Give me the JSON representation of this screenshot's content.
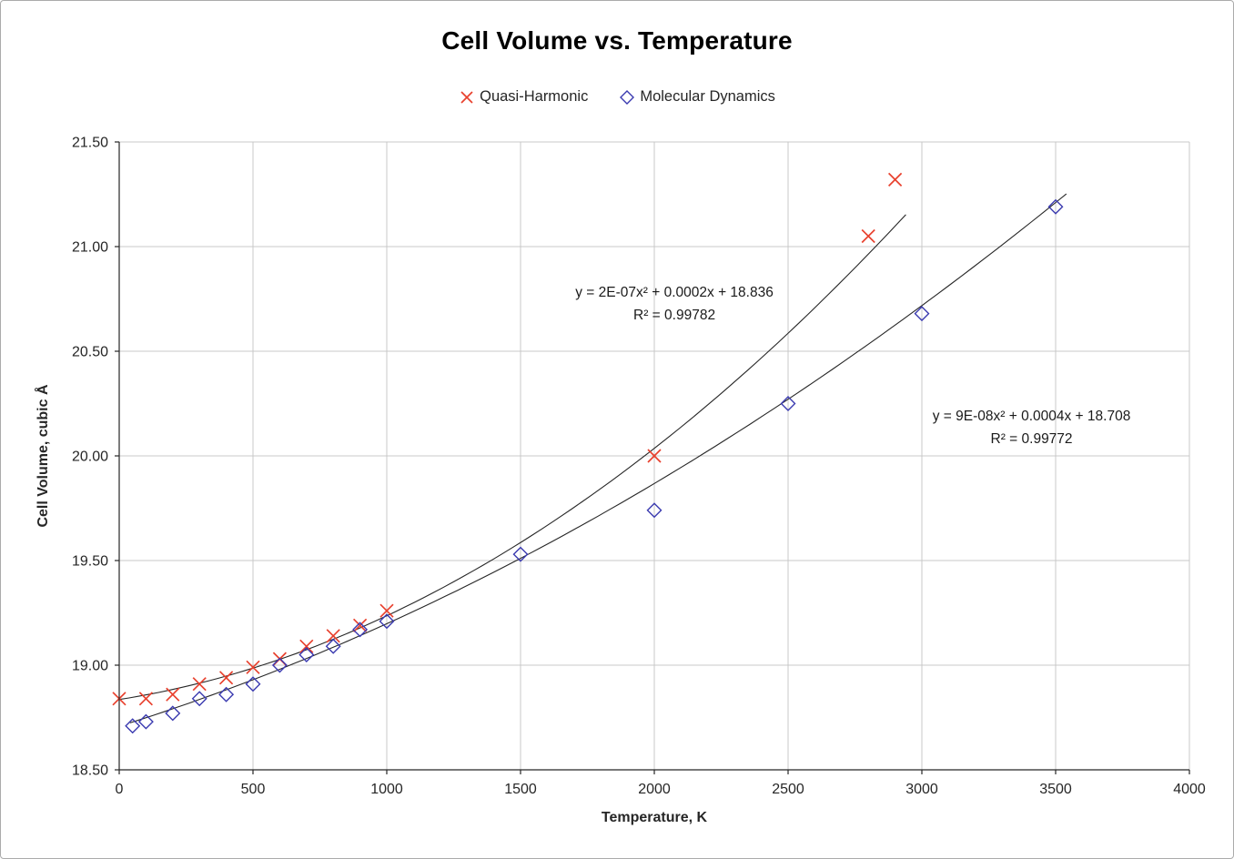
{
  "window": {
    "background": "#ffffff",
    "border_color": "#ababab"
  },
  "chart_data": {
    "type": "scatter",
    "title": "Cell Volume vs. Temperature",
    "xlabel": "Temperature, K",
    "ylabel": "Cell Volume, cubic Å",
    "xlim": [
      0,
      4000
    ],
    "ylim": [
      18.5,
      21.5
    ],
    "xticks": [
      0,
      500,
      1000,
      1500,
      2000,
      2500,
      3000,
      3500,
      4000
    ],
    "yticks": [
      "18.50",
      "19.00",
      "19.50",
      "20.00",
      "20.50",
      "21.00",
      "21.50"
    ],
    "grid": true,
    "grid_color": "#c9c9c9",
    "axis_color": "#262626",
    "tick_label_color": "#262626",
    "legend_position": "top",
    "series": [
      {
        "name": "Quasi-Harmonic",
        "marker": "x",
        "color": "#e8402d",
        "points": [
          [
            0,
            18.84
          ],
          [
            100,
            18.84
          ],
          [
            200,
            18.86
          ],
          [
            300,
            18.91
          ],
          [
            400,
            18.94
          ],
          [
            500,
            18.99
          ],
          [
            600,
            19.03
          ],
          [
            700,
            19.09
          ],
          [
            800,
            19.14
          ],
          [
            900,
            19.19
          ],
          [
            1000,
            19.26
          ],
          [
            2000,
            20.0
          ],
          [
            2800,
            21.05
          ],
          [
            2900,
            21.32
          ]
        ],
        "trendline": {
          "type": "polynomial",
          "coeffs": [
            18.836,
            0.0002,
            2e-07
          ],
          "x_range": [
            0,
            2940
          ],
          "color": "#262626"
        },
        "annotation": {
          "x": 2075,
          "y": 20.76,
          "lines": [
            "y = 2E-07x² + 0.0002x + 18.836",
            "R² = 0.99782"
          ]
        }
      },
      {
        "name": "Molecular Dynamics",
        "marker": "diamond",
        "color": "#3a3ab0",
        "points": [
          [
            50,
            18.71
          ],
          [
            100,
            18.73
          ],
          [
            200,
            18.77
          ],
          [
            300,
            18.84
          ],
          [
            400,
            18.86
          ],
          [
            500,
            18.91
          ],
          [
            600,
            19.0
          ],
          [
            700,
            19.05
          ],
          [
            800,
            19.09
          ],
          [
            900,
            19.17
          ],
          [
            1000,
            19.21
          ],
          [
            1500,
            19.53
          ],
          [
            2000,
            19.74
          ],
          [
            2500,
            20.25
          ],
          [
            3000,
            20.68
          ],
          [
            3500,
            21.19
          ]
        ],
        "trendline": {
          "type": "polynomial",
          "coeffs": [
            18.708,
            0.0004,
            9e-08
          ],
          "x_range": [
            40,
            3540
          ],
          "color": "#262626"
        },
        "annotation": {
          "x": 3410,
          "y": 20.17,
          "lines": [
            "y = 9E-08x² + 0.0004x + 18.708",
            "R² = 0.99772"
          ]
        }
      }
    ]
  }
}
